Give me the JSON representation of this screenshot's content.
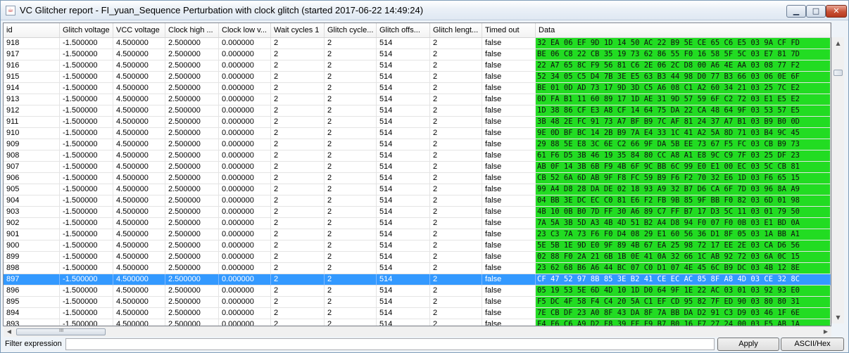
{
  "window": {
    "title": "VC Glitcher report - FI_yuan_Sequence Perturbation with clock glitch (started 2017-06-22 14:49:24)",
    "app_icon": "java-cup-icon",
    "controls": {
      "minimize": "minimize-icon",
      "maximize": "maximize-icon",
      "close": "close-icon"
    }
  },
  "table": {
    "columns": [
      "id",
      "Glitch voltage",
      "VCC voltage",
      "Clock high ...",
      "Clock low v...",
      "Wait cycles 1",
      "Glitch cycle...",
      "Glitch offs...",
      "Glitch lengt...",
      "Timed out",
      "Data"
    ],
    "selected_id": "897",
    "data_color": "#22dc22",
    "selection_color": "#3399ff",
    "rows": [
      [
        "918",
        "-1.500000",
        "4.500000",
        "2.500000",
        "0.000000",
        "2",
        "2",
        "514",
        "2",
        "false",
        "32 EA 06 EF 9D 1D 14 50 AC 22 B9 5E CE 65 C6 E5 03 9A CF FD"
      ],
      [
        "917",
        "-1.500000",
        "4.500000",
        "2.500000",
        "0.000000",
        "2",
        "2",
        "514",
        "2",
        "false",
        "BE 06 C8 22 CB 35 19 73 62 86 55 F0 16 58 5F 5C 03 E7 81 7D"
      ],
      [
        "916",
        "-1.500000",
        "4.500000",
        "2.500000",
        "0.000000",
        "2",
        "2",
        "514",
        "2",
        "false",
        "22 A7 65 8C F9 56 81 C6 2E 06 2C D8 00 A6 4E AA 03 08 77 F2"
      ],
      [
        "915",
        "-1.500000",
        "4.500000",
        "2.500000",
        "0.000000",
        "2",
        "2",
        "514",
        "2",
        "false",
        "52 34 05 C5 D4 7B 3E E5 63 B3 44 98 D0 77 B3 66 03 06 0E 6F"
      ],
      [
        "914",
        "-1.500000",
        "4.500000",
        "2.500000",
        "0.000000",
        "2",
        "2",
        "514",
        "2",
        "false",
        "BE 01 0D AD 73 17 9D 3D C5 A6 08 C1 A2 60 34 21 03 25 7C E2"
      ],
      [
        "913",
        "-1.500000",
        "4.500000",
        "2.500000",
        "0.000000",
        "2",
        "2",
        "514",
        "2",
        "false",
        "0D FA B1 11 60 89 17 1D AE 31 9D 57 59 6F C2 72 03 E1 E5 E2"
      ],
      [
        "912",
        "-1.500000",
        "4.500000",
        "2.500000",
        "0.000000",
        "2",
        "2",
        "514",
        "2",
        "false",
        "1D 38 86 CF E3 A8 CF 14 64 75 DA 22 CA 48 64 9F 03 53 57 E5"
      ],
      [
        "911",
        "-1.500000",
        "4.500000",
        "2.500000",
        "0.000000",
        "2",
        "2",
        "514",
        "2",
        "false",
        "3B 48 2E FC 91 73 A7 BF B9 7C AF 81 24 37 A7 B1 03 B9 B0 0D"
      ],
      [
        "910",
        "-1.500000",
        "4.500000",
        "2.500000",
        "0.000000",
        "2",
        "2",
        "514",
        "2",
        "false",
        "9E 0D BF BC 14 2B B9 7A E4 33 1C 41 A2 5A 8D 71 03 B4 9C 45"
      ],
      [
        "909",
        "-1.500000",
        "4.500000",
        "2.500000",
        "0.000000",
        "2",
        "2",
        "514",
        "2",
        "false",
        "29 88 5E E8 3C 6E C2 66 9F DA 5B EE 73 67 F5 FC 03 CB B9 73"
      ],
      [
        "908",
        "-1.500000",
        "4.500000",
        "2.500000",
        "0.000000",
        "2",
        "2",
        "514",
        "2",
        "false",
        "61 F6 D5 3B 46 19 35 84 80 CC A8 A1 E8 9C C9 7F 03 25 DF 23"
      ],
      [
        "907",
        "-1.500000",
        "4.500000",
        "2.500000",
        "0.000000",
        "2",
        "2",
        "514",
        "2",
        "false",
        "AB 0F 14 3B 6B F9 4B 6F 9C BB 6C 99 E0 E1 00 EC 03 5C CB 81"
      ],
      [
        "906",
        "-1.500000",
        "4.500000",
        "2.500000",
        "0.000000",
        "2",
        "2",
        "514",
        "2",
        "false",
        "CB 52 6A 6D AB 9F F8 FC 59 B9 F6 F2 70 32 E6 1D 03 F6 65 15"
      ],
      [
        "905",
        "-1.500000",
        "4.500000",
        "2.500000",
        "0.000000",
        "2",
        "2",
        "514",
        "2",
        "false",
        "99 A4 D8 28 DA DE 02 18 93 A9 32 B7 D6 CA 6F 7D 03 96 8A A9"
      ],
      [
        "904",
        "-1.500000",
        "4.500000",
        "2.500000",
        "0.000000",
        "2",
        "2",
        "514",
        "2",
        "false",
        "04 BB 3E DC EC C0 81 E6 F2 FB 9B 85 9F BB F0 82 03 6D 01 98"
      ],
      [
        "903",
        "-1.500000",
        "4.500000",
        "2.500000",
        "0.000000",
        "2",
        "2",
        "514",
        "2",
        "false",
        "4B 10 0B B0 7D FF 30 A6 89 C7 FF B7 17 D3 5C 11 03 01 79 50"
      ],
      [
        "902",
        "-1.500000",
        "4.500000",
        "2.500000",
        "0.000000",
        "2",
        "2",
        "514",
        "2",
        "false",
        "7A 5A 3B 5D A3 4B 4D 51 B2 A4 D8 94 F0 07 F0 0B 03 E1 BD 0A"
      ],
      [
        "901",
        "-1.500000",
        "4.500000",
        "2.500000",
        "0.000000",
        "2",
        "2",
        "514",
        "2",
        "false",
        "23 C3 7A 73 F6 F0 D4 08 29 E1 60 56 36 D1 8F 05 03 1A BB A1"
      ],
      [
        "900",
        "-1.500000",
        "4.500000",
        "2.500000",
        "0.000000",
        "2",
        "2",
        "514",
        "2",
        "false",
        "5E 5B 1E 9D E0 9F 89 4B 67 EA 25 98 72 17 EE 2E 03 CA D6 56"
      ],
      [
        "899",
        "-1.500000",
        "4.500000",
        "2.500000",
        "0.000000",
        "2",
        "2",
        "514",
        "2",
        "false",
        "02 88 F0 2A 21 6B 1B 0E 41 0A 32 66 1C AB 92 72 03 6A 0C 15"
      ],
      [
        "898",
        "-1.500000",
        "4.500000",
        "2.500000",
        "0.000000",
        "2",
        "2",
        "514",
        "2",
        "false",
        "23 62 68 B6 A6 44 BC 07 C0 D1 07 4E 45 6C B9 DC 03 4B 12 8E"
      ],
      [
        "897",
        "-1.500000",
        "4.500000",
        "2.500000",
        "0.000000",
        "2",
        "2",
        "514",
        "2",
        "false",
        "CF 47 52 97 8B 85 3E B2 41 CE EC AC 85 8F A8 4D 03 CE 32 8C"
      ],
      [
        "896",
        "-1.500000",
        "4.500000",
        "2.500000",
        "0.000000",
        "2",
        "2",
        "514",
        "2",
        "false",
        "05 19 53 5E 6D 4D 10 1D D0 64 9F 1E 22 AC 03 01 03 92 93 E0"
      ],
      [
        "895",
        "-1.500000",
        "4.500000",
        "2.500000",
        "0.000000",
        "2",
        "2",
        "514",
        "2",
        "false",
        "F5 DC 4F 58 F4 C4 20 5A C1 EF CD 95 82 7F ED 90 03 80 80 31"
      ],
      [
        "894",
        "-1.500000",
        "4.500000",
        "2.500000",
        "0.000000",
        "2",
        "2",
        "514",
        "2",
        "false",
        "7E CB DF 23 A0 8F 43 DA 8F 7A BB DA D2 91 C3 D9 03 46 1F 6E"
      ],
      [
        "893",
        "-1.500000",
        "4.500000",
        "2.500000",
        "0.000000",
        "2",
        "2",
        "514",
        "2",
        "false",
        "F4 F6 C6 A9 D2 F8 39 FF F9 B7 B0 16 F7 27 24 00 03 F5 AB 1A"
      ]
    ]
  },
  "scrollbars": {
    "vertical": {
      "up": "scroll-up-arrow-icon",
      "down": "scroll-down-arrow-icon"
    },
    "horizontal": {
      "left": "scroll-left-arrow-icon",
      "right": "scroll-right-arrow-icon",
      "grip": "III"
    }
  },
  "footer": {
    "filter_label": "Filter expression",
    "filter_value": "",
    "apply_label": "Apply",
    "ascii_hex_label": "ASCII/Hex"
  }
}
